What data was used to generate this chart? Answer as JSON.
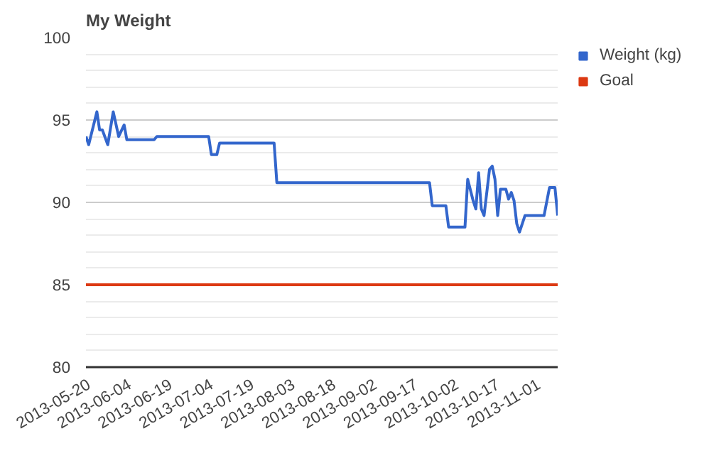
{
  "chart_data": {
    "type": "line",
    "title": "My Weight",
    "x": [
      "2013-05-19",
      "2013-05-20",
      "2013-05-23",
      "2013-05-24",
      "2013-05-25",
      "2013-05-27",
      "2013-05-29",
      "2013-05-31",
      "2013-06-02",
      "2013-06-03",
      "2013-06-13",
      "2013-06-14",
      "2013-07-03",
      "2013-07-04",
      "2013-07-06",
      "2013-07-07",
      "2013-07-27",
      "2013-07-28",
      "2013-09-22",
      "2013-09-23",
      "2013-09-28",
      "2013-09-29",
      "2013-10-05",
      "2013-10-06",
      "2013-10-08",
      "2013-10-09",
      "2013-10-10",
      "2013-10-11",
      "2013-10-12",
      "2013-10-14",
      "2013-10-15",
      "2013-10-16",
      "2013-10-17",
      "2013-10-18",
      "2013-10-20",
      "2013-10-21",
      "2013-10-22",
      "2013-10-23",
      "2013-10-24",
      "2013-10-25",
      "2013-10-27",
      "2013-11-03",
      "2013-11-05",
      "2013-11-07",
      "2013-11-08"
    ],
    "series": [
      {
        "name": "Weight (kg)",
        "color": "#3366cc",
        "values": [
          94.0,
          93.5,
          95.5,
          94.4,
          94.4,
          93.5,
          95.5,
          94.0,
          94.7,
          93.8,
          93.8,
          94.0,
          94.0,
          92.9,
          92.9,
          93.6,
          93.6,
          91.2,
          91.2,
          89.8,
          89.8,
          88.5,
          88.5,
          91.4,
          90.1,
          89.6,
          91.8,
          89.6,
          89.2,
          92.0,
          92.2,
          91.4,
          89.2,
          90.8,
          90.8,
          90.2,
          90.6,
          90.1,
          88.7,
          88.2,
          89.2,
          89.2,
          90.9,
          90.9,
          89.2
        ]
      },
      {
        "name": "Goal",
        "color": "#dc3912",
        "x": [
          "2013-05-19",
          "2013-11-08"
        ],
        "values": [
          85,
          85
        ]
      }
    ],
    "xlim": [
      "2013-05-19",
      "2013-11-08"
    ],
    "xticks": [
      {
        "value": "2013-05-20",
        "label": "2013-05-20"
      },
      {
        "value": "2013-06-04",
        "label": "2013-06-04"
      },
      {
        "value": "2013-06-19",
        "label": "2013-06-19"
      },
      {
        "value": "2013-07-04",
        "label": "2013-07-04"
      },
      {
        "value": "2013-07-19",
        "label": "2013-07-19"
      },
      {
        "value": "2013-08-03",
        "label": "2013-08-03"
      },
      {
        "value": "2013-08-18",
        "label": "2013-08-18"
      },
      {
        "value": "2013-09-02",
        "label": "2013-09-02"
      },
      {
        "value": "2013-09-17",
        "label": "2013-09-17"
      },
      {
        "value": "2013-10-02",
        "label": "2013-10-02"
      },
      {
        "value": "2013-10-17",
        "label": "2013-10-17"
      },
      {
        "value": "2013-11-01",
        "label": "2013-11-01"
      }
    ],
    "ylim": [
      80,
      100
    ],
    "yticks": [
      80,
      {
        "value": 81,
        "label": null
      },
      {
        "value": 82,
        "label": null
      },
      {
        "value": 83,
        "label": null
      },
      {
        "value": 84,
        "label": null
      },
      85,
      {
        "value": 86,
        "label": null
      },
      {
        "value": 87,
        "label": null
      },
      {
        "value": 88,
        "label": null
      },
      {
        "value": 89,
        "label": null
      },
      90,
      {
        "value": 91,
        "label": null
      },
      {
        "value": 92,
        "label": null
      },
      {
        "value": 93,
        "label": null
      },
      {
        "value": 94,
        "label": null
      },
      95,
      {
        "value": 96,
        "label": null
      },
      {
        "value": 97,
        "label": null
      },
      {
        "value": 98,
        "label": null
      },
      {
        "value": 99,
        "label": null
      },
      100
    ],
    "grid": "y",
    "legend": "right",
    "marker": "none",
    "line_style": "solid"
  }
}
